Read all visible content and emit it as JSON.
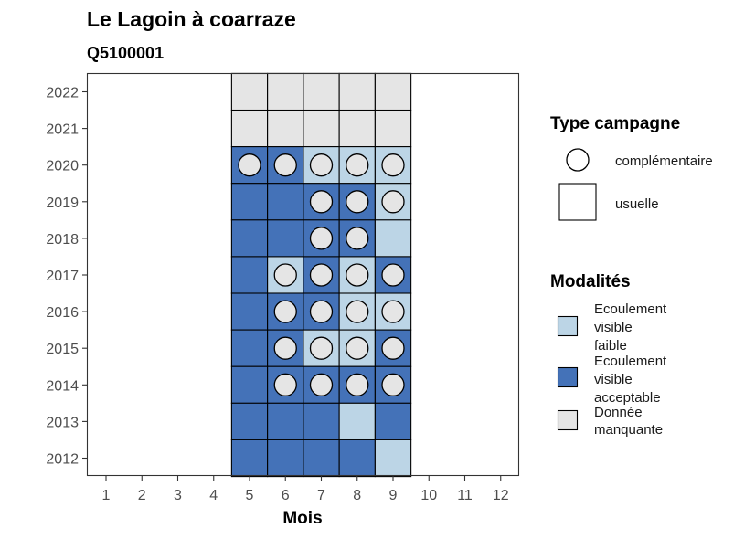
{
  "chart_data": {
    "type": "heatmap",
    "title": "Le Lagoin à coarraze",
    "subtitle": "Q5100001",
    "xlabel": "Mois",
    "ylabel": "",
    "x_ticks": [
      "1",
      "2",
      "3",
      "4",
      "5",
      "6",
      "7",
      "8",
      "9",
      "10",
      "11",
      "12"
    ],
    "y_ticks": [
      "2012",
      "2013",
      "2014",
      "2015",
      "2016",
      "2017",
      "2018",
      "2019",
      "2020",
      "2021",
      "2022"
    ],
    "grid": false,
    "colors": {
      "faible": "#bcd5e6",
      "acceptable": "#4472b8",
      "manquante": "#e5e5e5",
      "circle": "#e5e5e5"
    },
    "cells": [
      {
        "month": 5,
        "year": 2022,
        "modalite": "manquante",
        "campagne": "usuelle"
      },
      {
        "month": 6,
        "year": 2022,
        "modalite": "manquante",
        "campagne": "usuelle"
      },
      {
        "month": 7,
        "year": 2022,
        "modalite": "manquante",
        "campagne": "usuelle"
      },
      {
        "month": 8,
        "year": 2022,
        "modalite": "manquante",
        "campagne": "usuelle"
      },
      {
        "month": 9,
        "year": 2022,
        "modalite": "manquante",
        "campagne": "usuelle"
      },
      {
        "month": 5,
        "year": 2021,
        "modalite": "manquante",
        "campagne": "usuelle"
      },
      {
        "month": 6,
        "year": 2021,
        "modalite": "manquante",
        "campagne": "usuelle"
      },
      {
        "month": 7,
        "year": 2021,
        "modalite": "manquante",
        "campagne": "usuelle"
      },
      {
        "month": 8,
        "year": 2021,
        "modalite": "manquante",
        "campagne": "usuelle"
      },
      {
        "month": 9,
        "year": 2021,
        "modalite": "manquante",
        "campagne": "usuelle"
      },
      {
        "month": 5,
        "year": 2020,
        "modalite": "acceptable",
        "campagne": "complémentaire"
      },
      {
        "month": 6,
        "year": 2020,
        "modalite": "acceptable",
        "campagne": "complémentaire"
      },
      {
        "month": 7,
        "year": 2020,
        "modalite": "faible",
        "campagne": "complémentaire"
      },
      {
        "month": 8,
        "year": 2020,
        "modalite": "faible",
        "campagne": "complémentaire"
      },
      {
        "month": 9,
        "year": 2020,
        "modalite": "faible",
        "campagne": "complémentaire"
      },
      {
        "month": 5,
        "year": 2019,
        "modalite": "acceptable",
        "campagne": "usuelle"
      },
      {
        "month": 6,
        "year": 2019,
        "modalite": "acceptable",
        "campagne": "usuelle"
      },
      {
        "month": 7,
        "year": 2019,
        "modalite": "acceptable",
        "campagne": "complémentaire"
      },
      {
        "month": 8,
        "year": 2019,
        "modalite": "acceptable",
        "campagne": "complémentaire"
      },
      {
        "month": 9,
        "year": 2019,
        "modalite": "faible",
        "campagne": "complémentaire"
      },
      {
        "month": 5,
        "year": 2018,
        "modalite": "acceptable",
        "campagne": "usuelle"
      },
      {
        "month": 6,
        "year": 2018,
        "modalite": "acceptable",
        "campagne": "usuelle"
      },
      {
        "month": 7,
        "year": 2018,
        "modalite": "acceptable",
        "campagne": "complémentaire"
      },
      {
        "month": 8,
        "year": 2018,
        "modalite": "acceptable",
        "campagne": "complémentaire"
      },
      {
        "month": 9,
        "year": 2018,
        "modalite": "faible",
        "campagne": "usuelle"
      },
      {
        "month": 5,
        "year": 2017,
        "modalite": "acceptable",
        "campagne": "usuelle"
      },
      {
        "month": 6,
        "year": 2017,
        "modalite": "faible",
        "campagne": "complémentaire"
      },
      {
        "month": 7,
        "year": 2017,
        "modalite": "acceptable",
        "campagne": "complémentaire"
      },
      {
        "month": 8,
        "year": 2017,
        "modalite": "faible",
        "campagne": "complémentaire"
      },
      {
        "month": 9,
        "year": 2017,
        "modalite": "acceptable",
        "campagne": "complémentaire"
      },
      {
        "month": 5,
        "year": 2016,
        "modalite": "acceptable",
        "campagne": "usuelle"
      },
      {
        "month": 6,
        "year": 2016,
        "modalite": "acceptable",
        "campagne": "complémentaire"
      },
      {
        "month": 7,
        "year": 2016,
        "modalite": "acceptable",
        "campagne": "complémentaire"
      },
      {
        "month": 8,
        "year": 2016,
        "modalite": "faible",
        "campagne": "complémentaire"
      },
      {
        "month": 9,
        "year": 2016,
        "modalite": "faible",
        "campagne": "complémentaire"
      },
      {
        "month": 5,
        "year": 2015,
        "modalite": "acceptable",
        "campagne": "usuelle"
      },
      {
        "month": 6,
        "year": 2015,
        "modalite": "acceptable",
        "campagne": "complémentaire"
      },
      {
        "month": 7,
        "year": 2015,
        "modalite": "faible",
        "campagne": "complémentaire"
      },
      {
        "month": 8,
        "year": 2015,
        "modalite": "faible",
        "campagne": "complémentaire"
      },
      {
        "month": 9,
        "year": 2015,
        "modalite": "acceptable",
        "campagne": "complémentaire"
      },
      {
        "month": 5,
        "year": 2014,
        "modalite": "acceptable",
        "campagne": "usuelle"
      },
      {
        "month": 6,
        "year": 2014,
        "modalite": "acceptable",
        "campagne": "complémentaire"
      },
      {
        "month": 7,
        "year": 2014,
        "modalite": "acceptable",
        "campagne": "complémentaire"
      },
      {
        "month": 8,
        "year": 2014,
        "modalite": "acceptable",
        "campagne": "complémentaire"
      },
      {
        "month": 9,
        "year": 2014,
        "modalite": "acceptable",
        "campagne": "complémentaire"
      },
      {
        "month": 5,
        "year": 2013,
        "modalite": "acceptable",
        "campagne": "usuelle"
      },
      {
        "month": 6,
        "year": 2013,
        "modalite": "acceptable",
        "campagne": "usuelle"
      },
      {
        "month": 7,
        "year": 2013,
        "modalite": "acceptable",
        "campagne": "usuelle"
      },
      {
        "month": 8,
        "year": 2013,
        "modalite": "faible",
        "campagne": "usuelle"
      },
      {
        "month": 9,
        "year": 2013,
        "modalite": "acceptable",
        "campagne": "usuelle"
      },
      {
        "month": 5,
        "year": 2012,
        "modalite": "acceptable",
        "campagne": "usuelle"
      },
      {
        "month": 6,
        "year": 2012,
        "modalite": "acceptable",
        "campagne": "usuelle"
      },
      {
        "month": 7,
        "year": 2012,
        "modalite": "acceptable",
        "campagne": "usuelle"
      },
      {
        "month": 8,
        "year": 2012,
        "modalite": "acceptable",
        "campagne": "usuelle"
      },
      {
        "month": 9,
        "year": 2012,
        "modalite": "faible",
        "campagne": "usuelle"
      }
    ],
    "legend": {
      "campagne": {
        "title": "Type campagne",
        "items": [
          {
            "key": "complémentaire",
            "label": "complémentaire",
            "icon": "circle-icon"
          },
          {
            "key": "usuelle",
            "label": "usuelle",
            "icon": "square-icon"
          }
        ]
      },
      "modalites": {
        "title": "Modalités",
        "items": [
          {
            "key": "faible",
            "label_lines": [
              "Ecoulement",
              "visible",
              "faible"
            ]
          },
          {
            "key": "acceptable",
            "label_lines": [
              "Ecoulement",
              "visible",
              "acceptable"
            ]
          },
          {
            "key": "manquante",
            "label_lines": [
              "Donnée",
              "manquante"
            ]
          }
        ]
      }
    }
  }
}
